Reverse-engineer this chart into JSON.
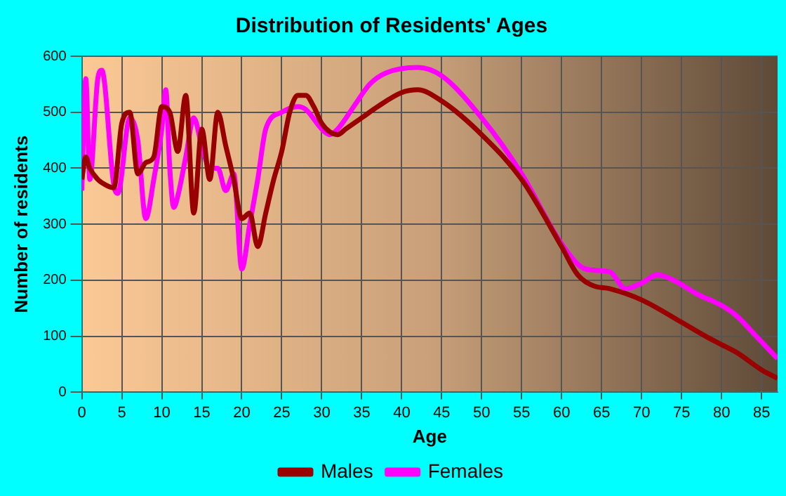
{
  "chart_data": {
    "type": "line",
    "title": "Distribution of Residents' Ages",
    "xlabel": "Age",
    "ylabel": "Number of residents",
    "xlim": [
      0,
      87
    ],
    "xticks": [
      0,
      5,
      10,
      15,
      20,
      25,
      30,
      35,
      40,
      45,
      50,
      55,
      60,
      65,
      70,
      75,
      80,
      85
    ],
    "ylim": [
      0,
      600
    ],
    "yticks": [
      0,
      100,
      200,
      300,
      400,
      500,
      600
    ],
    "grid": true,
    "legend": "bottom",
    "marker": "none",
    "line_style": "solid",
    "series": [
      {
        "name": "Males",
        "color": "#990000",
        "x": [
          0,
          0.5,
          1,
          2,
          3,
          4,
          5,
          6,
          7,
          8,
          9,
          10,
          11,
          12,
          13,
          14,
          15,
          16,
          17,
          18,
          19,
          20,
          21,
          22,
          23,
          24,
          25,
          26,
          27,
          28,
          29,
          30,
          31,
          32,
          33,
          35,
          37,
          40,
          42,
          45,
          50,
          55,
          60,
          62,
          64,
          66,
          70,
          75,
          78,
          80,
          82,
          85,
          87
        ],
        "values": [
          380,
          420,
          400,
          380,
          370,
          365,
          480,
          500,
          390,
          410,
          420,
          510,
          500,
          430,
          530,
          320,
          470,
          380,
          500,
          440,
          380,
          310,
          320,
          260,
          320,
          380,
          430,
          500,
          530,
          530,
          510,
          480,
          465,
          460,
          470,
          490,
          510,
          535,
          540,
          520,
          460,
          380,
          260,
          210,
          190,
          185,
          165,
          125,
          100,
          85,
          70,
          40,
          25
        ]
      },
      {
        "name": "Females",
        "color": "#ff00ff",
        "x": [
          0,
          0.5,
          1,
          2,
          2.5,
          4,
          4.5,
          6,
          7,
          8,
          9,
          10,
          10.5,
          11,
          11.5,
          12,
          13,
          14,
          15,
          16,
          17,
          18,
          19,
          20,
          21,
          22,
          23,
          25,
          27,
          28,
          30,
          31,
          32,
          34,
          36,
          38,
          42,
          45,
          50,
          55,
          60,
          63,
          66,
          68,
          70,
          72,
          74,
          77,
          80,
          82,
          84,
          87
        ],
        "values": [
          360,
          560,
          380,
          560,
          575,
          370,
          355,
          490,
          450,
          310,
          380,
          470,
          540,
          400,
          330,
          350,
          420,
          490,
          440,
          400,
          400,
          360,
          390,
          220,
          300,
          380,
          470,
          500,
          510,
          505,
          470,
          460,
          470,
          510,
          550,
          570,
          580,
          565,
          490,
          390,
          265,
          220,
          215,
          185,
          195,
          210,
          200,
          175,
          155,
          135,
          105,
          60
        ]
      }
    ]
  }
}
